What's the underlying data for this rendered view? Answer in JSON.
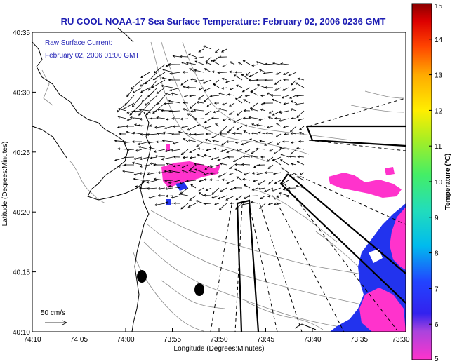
{
  "title": "RU COOL  NOAA-17  Sea Surface Temperature:  February 02, 2006 0236 GMT",
  "current_legend": {
    "line1": "Raw Surface Current:",
    "line2": "February 02, 2006 01:00 GMT"
  },
  "scale_label": "50 cm/s",
  "x_axis": {
    "label": "Longitude (Degrees:Minutes)",
    "ticks": [
      "74:10",
      "74:05",
      "74:00",
      "73:55",
      "73:50",
      "73:45",
      "73:40",
      "73:35",
      "73:30"
    ],
    "range_min": [
      -74.1667,
      -73.5
    ]
  },
  "y_axis": {
    "label": "Latitude (Degrees:Minutes)",
    "ticks": [
      "40:35",
      "40:30",
      "40:25",
      "40:20",
      "40:15",
      "40:10"
    ],
    "range": [
      40.1667,
      40.5833
    ]
  },
  "colorbar": {
    "label": "Temperature (°C)",
    "ticks": [
      "15",
      "14",
      "13",
      "12",
      "11",
      "10",
      "9",
      "8",
      "7",
      "6",
      "5"
    ],
    "range": [
      5,
      15
    ]
  },
  "colors": {
    "title": "#1d1db3",
    "sst_warm": "#ff33cc",
    "sst_cold": "#2233ee"
  }
}
